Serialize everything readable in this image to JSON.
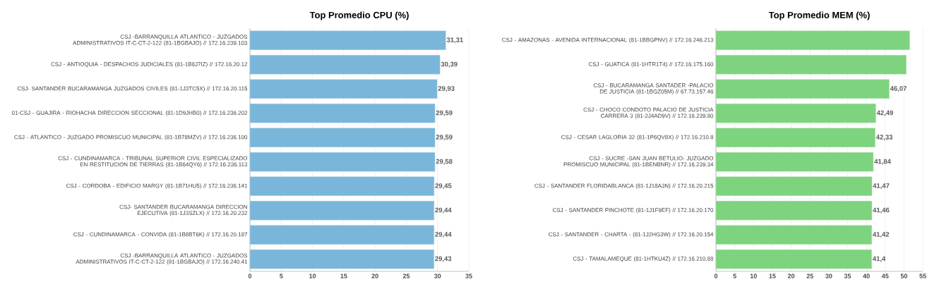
{
  "chart_data": [
    {
      "type": "bar",
      "orientation": "horizontal",
      "title": "Top Promedio CPU (%)",
      "categories": [
        "CSJ -BARRANQUILLA ATLANTICO - JUZGADOS ADMINISTRATIVOS IT-C-CT-2-122 (81-1BGBAJO) // 172.16.239.103",
        "CSJ - ANTIOQUIA - DESPACHOS JUDICIALES (81-1B8J7IZ) // 172.16.20.12",
        "CSJ- SANTANDER BUCARAMANGA JUZGADOS CIVILES (81-1J3TC5X) // 172.16.20.115",
        "01-CSJ - GUAJIRA - RIOHACHA DIRECCION SECCIONAL (81-1D9JHB0) // 172.16.236.202",
        "CSJ - ATLANTICO - JUZGADO PROMISCUO MUNICIPAL (81-1B78MZV) // 172.16.236.100",
        "CSJ - CUNDINAMARCA - TRIBUNAL SUPERIOR CIVIL ESPECIALIZADO EN RESTITUCION DE TIERRAS (81-1B64QY6) // 172.16.236.113",
        "CSJ - CORDOBA - EDIFICIO MARGY (81-1B71HU5) // 172.16.236.141",
        "CSJ- SANTANDER BUCARAMANGA DIRECCION EJECUTIVA (81-1J3SZLX) // 172.16.20.232",
        "CSJ - CUNDINAMARCA - CONVIDA (81-1B8BT6K) // 172.16.20.187",
        "CSJ -BARRANQUILLA ATLANTICO - JUZGADOS ADMINISTRATIVOS IT-C-CT-2-122 (81-1BGBAJO) // 172.16.240.41"
      ],
      "values": [
        31.31,
        30.39,
        29.93,
        29.59,
        29.59,
        29.58,
        29.45,
        29.44,
        29.44,
        29.43
      ],
      "value_labels": [
        "31,31",
        "30,39",
        "29,93",
        "29,59",
        "29,59",
        "29,58",
        "29,45",
        "29,44",
        "29,44",
        "29,43"
      ],
      "color": "#7ab6d9",
      "xlim": [
        0,
        35
      ],
      "xticks": [
        0,
        5,
        10,
        15,
        20,
        25,
        30,
        35
      ],
      "grid": "x"
    },
    {
      "type": "bar",
      "orientation": "horizontal",
      "title": "Top Promedio MEM (%)",
      "categories": [
        "CSJ - AMAZONAS - AVENIDA INTERNACIONAL (81-1BBGPNV) // 172.16.246.213",
        "CSJ - GUATICA (81-1HTR1T4) // 172.16.175.160",
        "CSJ - BUCARAMANGA SANTADER -PALACIO DE JUSTICIA (81-1BGZ05M) // 67.73.157.46",
        "CSJ - CHOCO CONDOTO PALACIO DE JUSTICIA CARRERA 3 (81-2J4AD9V) // 172.16.239.80",
        "CSJ - CESAR LAGLORIA 32 (81-1P6QV8X) // 172.16.210.8",
        "CSJ - SUCRE -SAN JUAN BETULIO- JUZGADO PROMISCUO MUNICIPAL (81-1BENBNR) // 172.16.239.34",
        "CSJ - SANTANDER FLORIDABLANCA (81-1J18A3N) // 172.16.20.215",
        "CSJ - SANTANDER PINCHOTE (81-1J1F9EF) // 172.16.20.170",
        "CSJ - SANTANDER - CHARTA - (81-1J2HG3W) // 172.16.20.154",
        "CSJ - TAMALAMEQUE (81-1HTKU4Z) // 172.16.210.88"
      ],
      "values": [
        51.5,
        50.6,
        46.07,
        42.49,
        42.33,
        41.84,
        41.47,
        41.46,
        41.42,
        41.4
      ],
      "value_labels": [
        null,
        null,
        "46,07",
        "42,49",
        "42,33",
        "41,84",
        "41,47",
        "41,46",
        "41,42",
        "41,4"
      ],
      "color": "#7ed37e",
      "xlim": [
        0,
        55
      ],
      "xticks": [
        0,
        5,
        10,
        15,
        20,
        25,
        30,
        35,
        40,
        45,
        50,
        55
      ],
      "grid": "x"
    }
  ]
}
